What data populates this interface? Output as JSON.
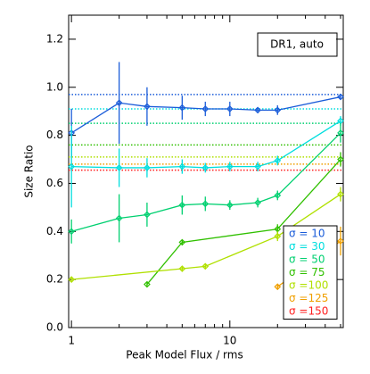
{
  "chart_data": {
    "type": "line",
    "x_label": "Peak Model Flux / rms",
    "y_label": "Size Ratio",
    "annotation": "DR1, auto",
    "xlim": [
      0.96,
      52
    ],
    "ylim": [
      0,
      1.3
    ],
    "log_x": true,
    "xticks": [
      1,
      10
    ],
    "xminor": [
      2,
      3,
      4,
      5,
      6,
      7,
      8,
      9,
      20,
      30,
      40,
      50
    ],
    "yticks": [
      {
        "value": 0,
        "label": "0.0"
      },
      {
        "value": 0.2,
        "label": "0.2"
      },
      {
        "value": 0.4,
        "label": "0.4"
      },
      {
        "value": 0.6,
        "label": "0.6"
      },
      {
        "value": 0.8,
        "label": "0.8"
      },
      {
        "value": 1,
        "label": "1.0"
      },
      {
        "value": 1.2,
        "label": "1.2"
      }
    ],
    "series": [
      {
        "name": "σ = 10",
        "color": "#1a5cd9",
        "reference": 0.97,
        "x": [
          1,
          2,
          3,
          5,
          7,
          10,
          15,
          20,
          50
        ],
        "values": [
          0.81,
          0.935,
          0.92,
          0.915,
          0.91,
          0.91,
          0.905,
          0.905,
          0.96
        ],
        "errors": [
          0.1,
          0.17,
          0.08,
          0.05,
          0.03,
          0.03,
          0.01,
          0.02,
          0.01
        ]
      },
      {
        "name": "σ = 30",
        "color": "#00dede",
        "reference": 0.91,
        "x": [
          1,
          2,
          3,
          5,
          7,
          10,
          15,
          20,
          50
        ],
        "values": [
          0.67,
          0.665,
          0.665,
          0.67,
          0.665,
          0.67,
          0.67,
          0.695,
          0.86
        ],
        "errors": [
          0.17,
          0.08,
          0.04,
          0.03,
          0.02,
          0.02,
          0.02,
          0.02,
          0.02
        ]
      },
      {
        "name": "σ = 50",
        "color": "#00d070",
        "reference": 0.85,
        "x": [
          1,
          2,
          3,
          5,
          7,
          10,
          15,
          20,
          50
        ],
        "values": [
          0.4,
          0.455,
          0.47,
          0.51,
          0.515,
          0.51,
          0.52,
          0.55,
          0.81
        ],
        "errors": [
          0.05,
          0.1,
          0.05,
          0.04,
          0.03,
          0.02,
          0.02,
          0.02,
          0.04
        ]
      },
      {
        "name": "σ = 75",
        "color": "#30c000",
        "reference": 0.76,
        "x": [
          3,
          5,
          20,
          50
        ],
        "values": [
          0.18,
          0.355,
          0.41,
          0.7
        ],
        "errors": [
          0.01,
          0.01,
          0.02,
          0.03
        ]
      },
      {
        "name": "σ =100",
        "color": "#b0e000",
        "reference": 0.71,
        "x": [
          1,
          5,
          7,
          20,
          50
        ],
        "values": [
          0.2,
          0.245,
          0.255,
          0.38,
          0.555
        ],
        "errors": [
          0.01,
          0.01,
          0.01,
          0.02,
          0.03
        ]
      },
      {
        "name": "σ =125",
        "color": "#f0a000",
        "reference": 0.68,
        "x": [
          20,
          50
        ],
        "values": [
          0.17,
          0.36
        ],
        "errors": [
          0.01,
          0.06
        ]
      },
      {
        "name": "σ =150",
        "color": "#ff2020",
        "reference": 0.655,
        "x": [],
        "values": [],
        "errors": []
      }
    ]
  }
}
